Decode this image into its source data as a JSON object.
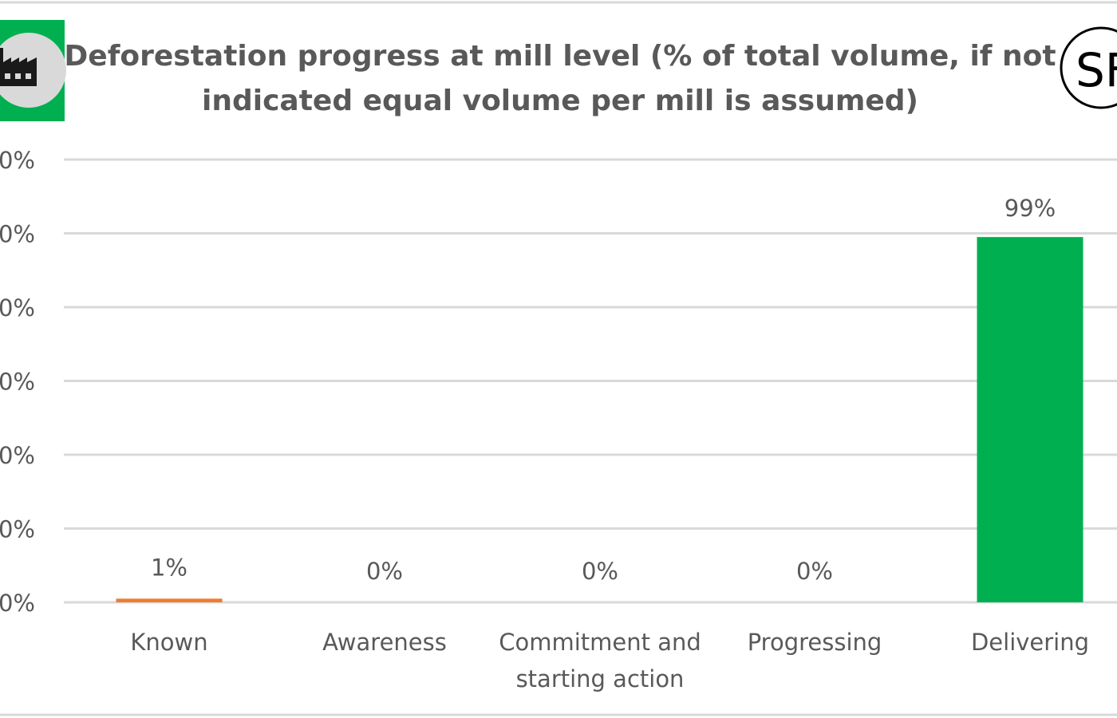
{
  "colors": {
    "text": "#595959",
    "grid": "#d9d9d9",
    "orange": "#ed7d31",
    "green": "#00b050",
    "icon_bg": "#d9d9d9"
  },
  "icons": {
    "left": "factory-icon",
    "right": "sf-logo"
  },
  "logo_text": "SF",
  "chart_data": {
    "type": "bar",
    "title": "Deforestation progress at mill level (% of total volume, if not indicated equal volume per mill is assumed)",
    "title_lines": [
      "Deforestation progress at mill level (% of total volume, if not",
      "indicated equal volume per mill is assumed)"
    ],
    "categories": [
      [
        "Known"
      ],
      [
        "Awareness"
      ],
      [
        "Commitment and",
        "starting action"
      ],
      [
        "Progressing"
      ],
      [
        "Delivering"
      ]
    ],
    "values": [
      1,
      0,
      0,
      0,
      99
    ],
    "value_labels": [
      "1%",
      "0%",
      "0%",
      "0%",
      "99%"
    ],
    "bar_colors": [
      "#ed7d31",
      "#ed7d31",
      "#ed7d31",
      "#ed7d31",
      "#00b050"
    ],
    "y_ticks": [
      "0%",
      "0%",
      "0%",
      "0%",
      "0%",
      "0%",
      "0%"
    ],
    "ylim": [
      0,
      120
    ],
    "grid": true,
    "legend": "none"
  }
}
